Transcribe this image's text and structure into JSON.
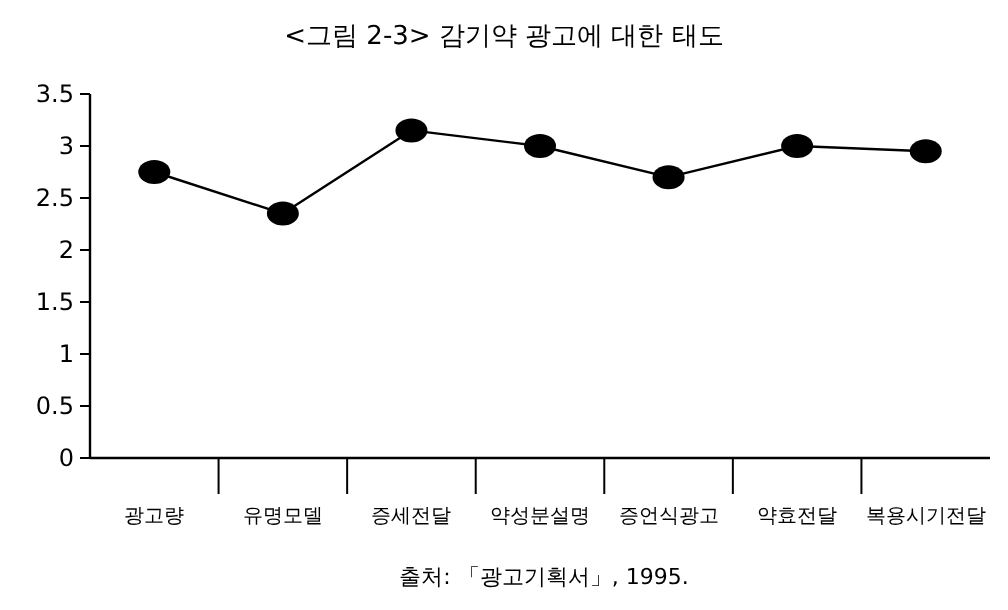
{
  "chart_data": {
    "type": "line",
    "title": "<그림 2-3> 감기약 광고에 대한 태도",
    "categories": [
      "광고량",
      "유명모델",
      "증세전달",
      "약성분설명",
      "증언식광고",
      "약효전달",
      "복용시기전달"
    ],
    "values": [
      2.75,
      2.35,
      3.15,
      3.0,
      2.7,
      3.0,
      2.95
    ],
    "color": "#000000",
    "marker": "circle",
    "line_style": "solid",
    "ylim": [
      0,
      3.5
    ],
    "yticks": [
      0,
      0.5,
      1,
      1.5,
      2,
      2.5,
      3,
      3.5
    ],
    "annotations": [
      "출처: 「광고기획서」, 1995."
    ]
  }
}
